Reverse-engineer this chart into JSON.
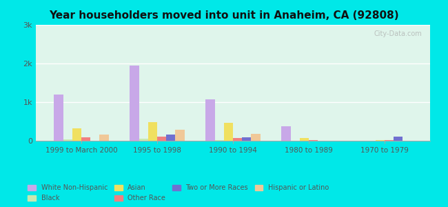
{
  "title": "Year householders moved into unit in Anaheim, CA (92808)",
  "categories": [
    "1999 to March 2000",
    "1995 to 1998",
    "1990 to 1994",
    "1980 to 1989",
    "1970 to 1979"
  ],
  "series": {
    "White Non-Hispanic": [
      1200,
      1950,
      1070,
      380,
      0
    ],
    "Black": [
      30,
      55,
      25,
      0,
      0
    ],
    "Asian": [
      330,
      480,
      470,
      70,
      15
    ],
    "Other Race": [
      90,
      110,
      80,
      15,
      10
    ],
    "Two or More Races": [
      0,
      165,
      95,
      0,
      110
    ],
    "Hispanic or Latino": [
      165,
      290,
      185,
      0,
      0
    ]
  },
  "colors": {
    "White Non-Hispanic": "#c8a8e8",
    "Black": "#c8e8b0",
    "Asian": "#f0e060",
    "Other Race": "#f08080",
    "Two or More Races": "#7070d0",
    "Hispanic or Latino": "#f0c898"
  },
  "background_color": "#00e8e8",
  "plot_bg_gradient_top": "#e8f8f0",
  "plot_bg_gradient_bottom": "#d8f0e8",
  "ylim": [
    0,
    3000
  ],
  "yticks": [
    0,
    1000,
    2000,
    3000
  ],
  "ytick_labels": [
    "0",
    "1k",
    "2k",
    "3k"
  ],
  "watermark": "City-Data.com"
}
